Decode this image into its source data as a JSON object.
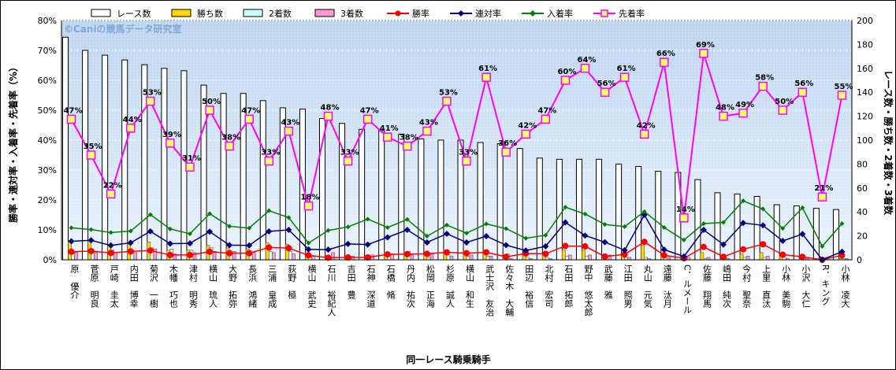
{
  "chart_data": {
    "type": "bar+line",
    "title": "",
    "watermark": "©Caniの競馬データ研究室",
    "xlabel": "同一レース騎乗騎手",
    "ylabel_left": "勝率・連対率・入着率・先着率（%）",
    "ylabel_right": "レース数・勝ち数・2着数・3着数",
    "ylim_left": [
      0,
      80
    ],
    "ylim_right": [
      0,
      200
    ],
    "yticks_left": [
      "0%",
      "10%",
      "20%",
      "30%",
      "40%",
      "50%",
      "60%",
      "70%",
      "80%"
    ],
    "yticks_right": [
      "0",
      "20",
      "40",
      "60",
      "80",
      "100",
      "120",
      "140",
      "160",
      "180",
      "200"
    ],
    "legend_position": "top",
    "grid": true,
    "categories": [
      "原　優介",
      "菅原　明良",
      "戸崎　圭太",
      "内田　博幸",
      "菊沢　一樹",
      "木幡　巧也",
      "津村　明秀",
      "横山　琉人",
      "大野　拓弥",
      "長浜　鴻緒",
      "三浦　皇成",
      "荻野　極",
      "横山　武史",
      "石川　裕紀人",
      "吉田　豊",
      "石神　深道",
      "石橋　脩",
      "丹内　祐次",
      "松岡　正海",
      "杉原　誠人",
      "横山　和生",
      "武士沢　友治",
      "佐々木　大輔",
      "田辺　裕信",
      "北村　宏司",
      "石田　拓郎",
      "野中　悠太郎",
      "武藤　雅",
      "江田　照男",
      "丸山　元気",
      "遠藤　汰月",
      "C．ルメール",
      "佐藤　翔馬",
      "嶋田　純次",
      "今村　聖奈",
      "上里　直汰",
      "小林　美駒",
      "小沢　大仁",
      "R．キング",
      "小林　凌大"
    ],
    "series": [
      {
        "name": "レース数",
        "kind": "bar",
        "axis": "right",
        "color": "#ffffff",
        "values": [
          186,
          175,
          171,
          167,
          163,
          160,
          158,
          146,
          139,
          139,
          133,
          127,
          126,
          118,
          114,
          109,
          108,
          105,
          101,
          100,
          100,
          98,
          97,
          93,
          85,
          84,
          84,
          84,
          80,
          78,
          74,
          73,
          67,
          56,
          55,
          53,
          46,
          45,
          43,
          42
        ]
      },
      {
        "name": "勝ち数",
        "kind": "bar",
        "axis": "right",
        "color": "#ffd700",
        "values": [
          15,
          16,
          12,
          13,
          15,
          8,
          8,
          12,
          10,
          9,
          14,
          13,
          6,
          3,
          3,
          3,
          6,
          6,
          5,
          8,
          7,
          8,
          3,
          5,
          5,
          8,
          8,
          3,
          4,
          12,
          3,
          1,
          6,
          1,
          5,
          6,
          3,
          1,
          0,
          1
        ]
      },
      {
        "name": "2着数",
        "kind": "bar",
        "axis": "right",
        "color": "#ccffff",
        "values": [
          7,
          8,
          8,
          8,
          10,
          9,
          8,
          10,
          4,
          5,
          7,
          7,
          2,
          2,
          2,
          3,
          5,
          7,
          2,
          4,
          3,
          3,
          5,
          2,
          2,
          3,
          3,
          2,
          2,
          2,
          2,
          2,
          1,
          2,
          2,
          2,
          2,
          2,
          0,
          1
        ]
      },
      {
        "name": "3着数",
        "kind": "bar",
        "axis": "right",
        "color": "#ff99cc",
        "values": [
          6,
          6,
          6,
          6,
          9,
          5,
          6,
          7,
          7,
          6,
          6,
          5,
          3,
          6,
          3,
          4,
          5,
          4,
          5,
          3,
          4,
          3,
          1,
          1,
          1,
          4,
          4,
          4,
          2,
          1,
          2,
          2,
          2,
          1,
          3,
          3,
          1,
          1,
          2,
          1
        ]
      },
      {
        "name": "勝率",
        "kind": "line",
        "axis": "left",
        "color": "#ff0000",
        "marker": "circle",
        "values": [
          2.7,
          2.9,
          2.3,
          2.8,
          3.1,
          1.6,
          1.6,
          2.7,
          2.2,
          2.2,
          4.1,
          3.9,
          1.5,
          0.7,
          0.8,
          0.8,
          1.8,
          1.9,
          2.0,
          2.5,
          2.2,
          2.5,
          1.0,
          2.1,
          2.0,
          4.6,
          4.5,
          1.1,
          1.8,
          6.0,
          1.5,
          0.5,
          4.3,
          1.0,
          3.5,
          5.2,
          1.7,
          1.0,
          0,
          1.5
        ]
      },
      {
        "name": "連対率",
        "kind": "line",
        "axis": "left",
        "color": "#000080",
        "marker": "diamond",
        "values": [
          6.2,
          6.5,
          4.8,
          5.7,
          9.5,
          5.4,
          5.5,
          9.4,
          4.9,
          4.8,
          9.5,
          10.0,
          3.5,
          3.4,
          5.3,
          5.1,
          7.5,
          10.0,
          5.8,
          8.7,
          5.8,
          7.9,
          4.9,
          3.1,
          4.5,
          12.5,
          8.1,
          5.9,
          3.2,
          15.0,
          3.4,
          1.1,
          10.0,
          5.1,
          12.3,
          11.5,
          6.3,
          8.6,
          0,
          2.7
        ]
      },
      {
        "name": "入着率",
        "kind": "line",
        "axis": "left",
        "color": "#008000",
        "marker": "diamond",
        "values": [
          10.7,
          10.1,
          9.1,
          9.6,
          15.1,
          10.3,
          8.7,
          15.4,
          11.2,
          10.6,
          16.4,
          14.1,
          5.6,
          9.8,
          11.0,
          13.6,
          10.8,
          13.5,
          7.9,
          11.6,
          8.9,
          12.0,
          10.4,
          7.2,
          8.2,
          17.6,
          15.3,
          11.8,
          11.1,
          16.1,
          10.8,
          6.6,
          12.1,
          12.5,
          19.7,
          17.0,
          10.5,
          17.4,
          4.5,
          12.1
        ]
      },
      {
        "name": "先着率",
        "kind": "line",
        "axis": "left",
        "color": "#ff00ff",
        "marker": "square",
        "values": [
          47,
          35,
          22,
          44,
          53,
          39,
          31,
          50,
          38,
          47,
          33,
          43,
          18,
          48,
          33,
          47,
          41,
          38,
          43,
          53,
          33,
          61,
          36,
          42,
          47,
          60,
          64,
          56,
          61,
          42,
          66,
          14,
          69,
          48,
          49,
          58,
          50,
          56,
          21,
          55
        ]
      }
    ],
    "data_labels": [
      "47%",
      "35%",
      "22%",
      "44%",
      "53%",
      "39%",
      "31%",
      "50%",
      "38%",
      "47%",
      "33%",
      "43%",
      "18%",
      "48%",
      "33%",
      "47%",
      "41%",
      "38%",
      "43%",
      "53%",
      "33%",
      "61%",
      "36%",
      "42%",
      "47%",
      "60%",
      "64%",
      "56%",
      "61%",
      "42%",
      "66%",
      "14%",
      "69%",
      "48%",
      "49%",
      "58%",
      "50%",
      "56%",
      "21%",
      "55%"
    ]
  }
}
